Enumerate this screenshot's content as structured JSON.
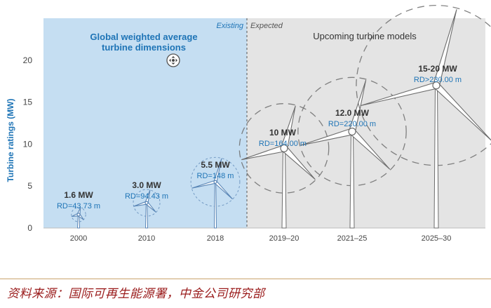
{
  "chart_data": {
    "type": "bar",
    "ylabel": "Turbine ratings (MW)",
    "ylim": [
      0,
      25
    ],
    "yticks": [
      0,
      5,
      10,
      15,
      20
    ],
    "categories": [
      "2000",
      "2010",
      "2018",
      "2019–20",
      "2021–25",
      "2025–30"
    ],
    "ratings_mw": [
      1.6,
      3.0,
      5.5,
      10,
      12,
      17.5
    ],
    "labels": [
      {
        "mw": "1.6 MW",
        "rd": "RD=43.73 m"
      },
      {
        "mw": "3.0 MW",
        "rd": "RD=94.43 m"
      },
      {
        "mw": "5.5 MW",
        "rd": "RD=148 m"
      },
      {
        "mw": "10 MW",
        "rd": "RD=164.00 m"
      },
      {
        "mw": "12.0 MW",
        "rd": "RD=220.00 m"
      },
      {
        "mw": "15-20 MW",
        "rd": "RD>230.00 m"
      }
    ],
    "existing_count": 3,
    "regions": {
      "existing": "Existing",
      "expected": "Expected",
      "left_title_line1": "Global weighted average",
      "left_title_line2": "turbine dimensions",
      "right_title": "Upcoming turbine models"
    },
    "colors": {
      "existing_bg": "#c5def2",
      "expected_bg": "#e4e4e4",
      "accent_blue": "#1e74b6",
      "existing_turbine": "#5a86b6",
      "expected_turbine": "#6d6d6d"
    }
  },
  "source": "资料来源：国际可再生能源署，中金公司研究部"
}
